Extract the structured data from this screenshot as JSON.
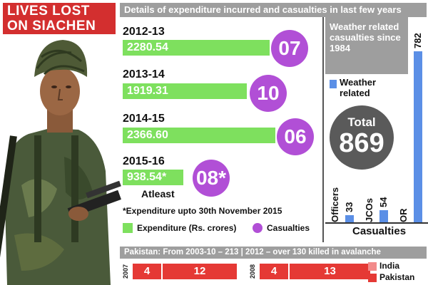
{
  "title": {
    "line1": "LIVES  LOST",
    "line2": "ON SIACHEN"
  },
  "colors": {
    "expenditure": "#7ee05e",
    "casualties": "#b14fd6",
    "weather": "#5b8fe6",
    "total": "#5a5a5a",
    "india": "#f28b8b",
    "pakistan": "#e53935"
  },
  "chart_data": [
    {
      "type": "bar",
      "title": "Details of expenditure incurred and casualties in last few years",
      "categories": [
        "2012-13",
        "2013-14",
        "2014-15",
        "2015-16"
      ],
      "series": [
        {
          "name": "Expenditure (Rs. crores)",
          "values": [
            2280.54,
            1919.31,
            2366.6,
            938.54
          ],
          "labels": [
            "2280.54",
            "1919.31",
            "2366.60",
            "938.54*"
          ]
        },
        {
          "name": "Casualties",
          "values": [
            7,
            10,
            6,
            8
          ],
          "labels": [
            "07",
            "10",
            "06",
            "08*"
          ]
        }
      ],
      "annotations": [
        "Atleast",
        "*Expenditure upto 30th November 2015"
      ],
      "legend": "bottom"
    },
    {
      "type": "bar",
      "xlabel": "Casualties",
      "categories": [
        "Officers",
        "JCOs",
        "OR"
      ],
      "series": [
        {
          "name": "Weather related",
          "values": [
            33,
            54,
            782
          ]
        }
      ],
      "header": "Weather related casualties since 1984",
      "total_label": "Total",
      "total": 869,
      "ylim": [
        0,
        782
      ]
    },
    {
      "type": "bar",
      "title": "Pakistan: From 2003-10 – 213  | 2012 – over 130 killed in avalanche",
      "categories": [
        "2007",
        "2008"
      ],
      "series": [
        {
          "name": "India",
          "values": [
            4,
            4
          ]
        },
        {
          "name": "Pakistan",
          "values": [
            12,
            13
          ]
        }
      ],
      "legend": "right"
    }
  ]
}
